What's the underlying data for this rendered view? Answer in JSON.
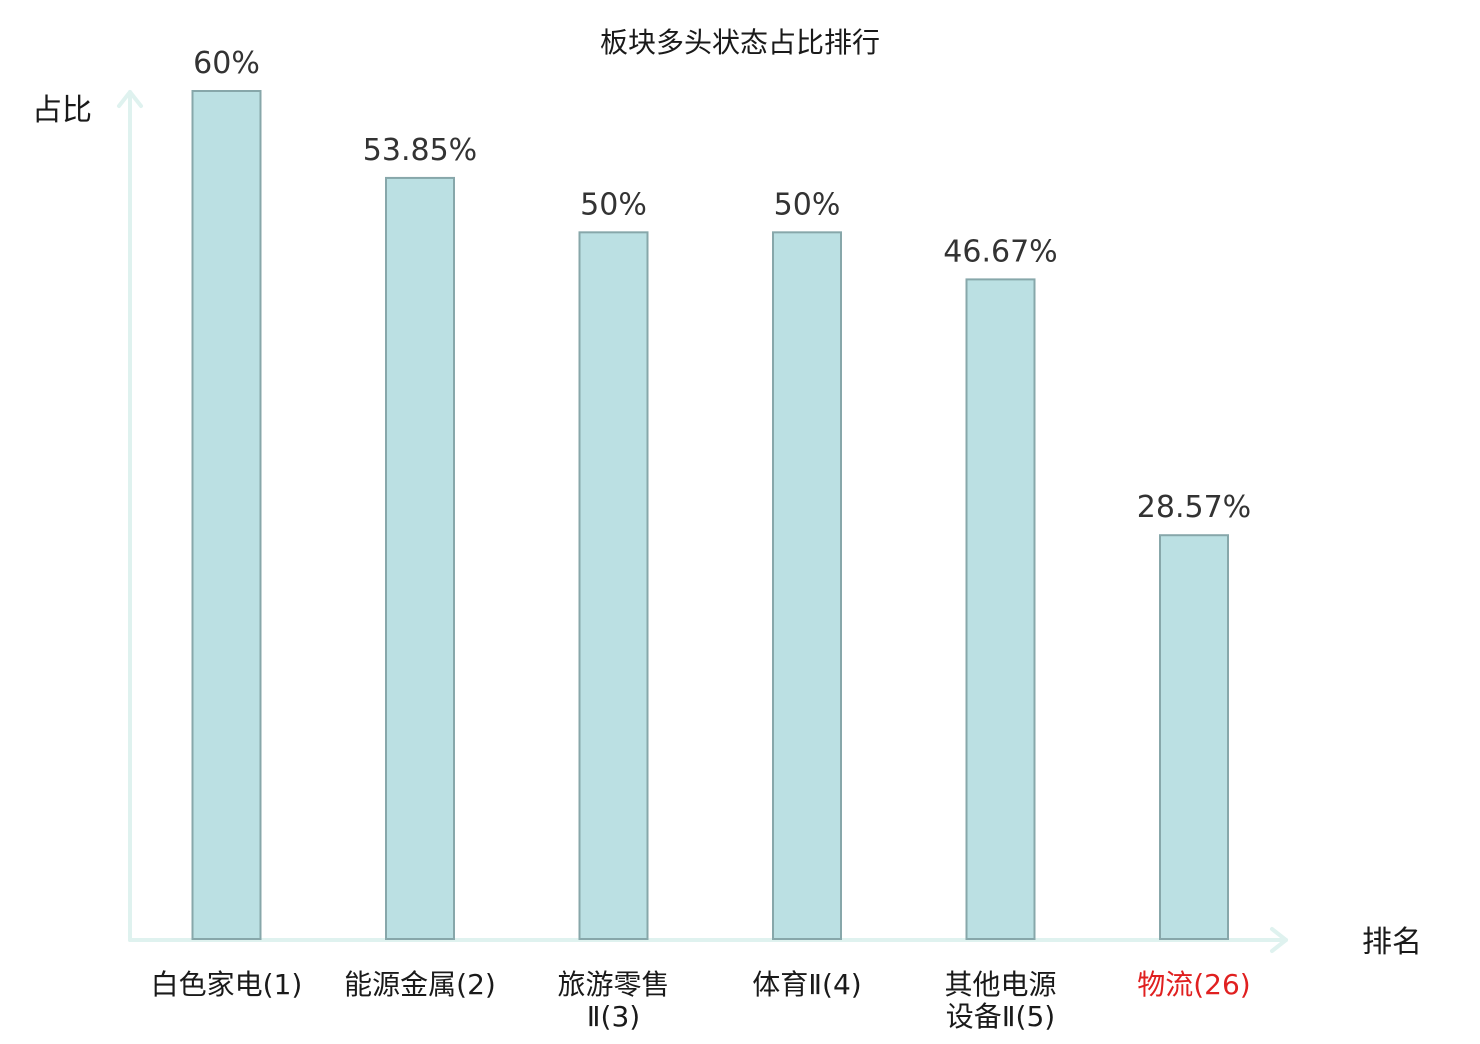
{
  "chart_data": {
    "type": "bar",
    "title": "板块多头状态占比排行",
    "ylabel": "占比",
    "xlabel": "排名",
    "categories": [
      [
        "白色家电(1)"
      ],
      [
        "能源金属(2)"
      ],
      [
        "旅游零售",
        "Ⅱ(3)"
      ],
      [
        "体育Ⅱ(4)"
      ],
      [
        "其他电源",
        "设备Ⅱ(5)"
      ],
      [
        "物流(26)"
      ]
    ],
    "values": [
      60,
      53.85,
      50,
      50,
      46.67,
      28.57
    ],
    "value_labels": [
      "60%",
      "53.85%",
      "50%",
      "50%",
      "46.67%",
      "28.57%"
    ],
    "highlight_index": 5,
    "ylim": [
      0,
      60
    ],
    "grid": false,
    "legend": "none",
    "colors": {
      "bar_fill": "#bbe0e3",
      "bar_stroke": "#87a7aa",
      "axis": "#dff2ef",
      "label_text": "#1a1a1a",
      "value_text": "#333333",
      "highlight_text": "#e02020"
    }
  }
}
